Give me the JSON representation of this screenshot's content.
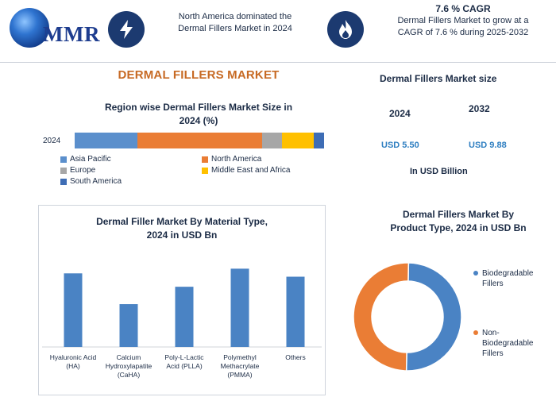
{
  "header": {
    "logo_text": "MMR",
    "left_icon": "lightning-bolt-icon",
    "middle_text_line1": "North America dominated the",
    "middle_text_line2": "Dermal Fillers Market in 2024",
    "right_icon": "flame-icon",
    "cagr_title": "7.6 % CAGR",
    "cagr_line1": "Dermal Fillers Market to grow at a",
    "cagr_line2": "CAGR of 7.6 % during 2025-2032"
  },
  "title": "DERMAL FILLERS MARKET",
  "market_size": {
    "title": "Dermal Fillers Market size",
    "year1": "2024",
    "year2": "2032",
    "value1": "USD 5.50",
    "value2": "USD 9.88",
    "unit": "In USD Billion"
  },
  "colors": {
    "asia_pacific": "#5b8fcc",
    "north_america": "#ea7d35",
    "europe": "#a7a7a7",
    "middle_east_africa": "#ffc000",
    "south_america": "#3e6db5",
    "bar": "#4a83c4",
    "donut_blue": "#4a83c4",
    "donut_orange": "#ea7d35"
  },
  "chart_data": [
    {
      "type": "bar",
      "subtype": "stacked-horizontal",
      "title_line1": "Region wise Dermal Fillers Market Size in",
      "title_line2": "2024 (%)",
      "categories": [
        "2024"
      ],
      "series": [
        {
          "name": "Asia Pacific",
          "values": [
            25
          ]
        },
        {
          "name": "North America",
          "values": [
            50
          ]
        },
        {
          "name": "Europe",
          "values": [
            8
          ]
        },
        {
          "name": "Middle East and Africa",
          "values": [
            13
          ]
        },
        {
          "name": "South America",
          "values": [
            4
          ]
        }
      ],
      "xlim": [
        0,
        100
      ],
      "legend_position": "bottom"
    },
    {
      "type": "bar",
      "title_line1": "Dermal Filler Market By Material Type,",
      "title_line2": "2024 in USD Bn",
      "categories": [
        "Hyaluronic Acid (HA)",
        "Calcium Hydroxylapatite (CaHA)",
        "Poly-L-Lactic Acid (PLLA)",
        "Polymethyl Methacrylate (PMMA)",
        "Others"
      ],
      "category_label_lines": [
        [
          "Hyaluronic Acid",
          "(HA)"
        ],
        [
          "Calcium",
          "Hydroxylapatite",
          "(CaHA)"
        ],
        [
          "Poly-L-Lactic",
          "Acid (PLLA)"
        ],
        [
          "Polymethyl",
          "Methacrylate",
          "(PMMA)"
        ],
        [
          "Others"
        ]
      ],
      "values": [
        1.1,
        0.64,
        0.9,
        1.17,
        1.05
      ],
      "ylim": [
        0,
        1.4
      ],
      "grid": false
    },
    {
      "type": "pie",
      "subtype": "donut",
      "title_line1": "Dermal Fillers Market By",
      "title_line2": "Product Type, 2024 in USD Bn",
      "labels": [
        "Biodegradable Fillers",
        "Non-Biodegradable Fillers"
      ],
      "label_lines": [
        [
          "Biodegradable",
          "Fillers"
        ],
        [
          "Non-",
          "Biodegradable",
          "Fillers"
        ]
      ],
      "values": [
        50,
        50
      ],
      "legend_position": "right"
    }
  ]
}
